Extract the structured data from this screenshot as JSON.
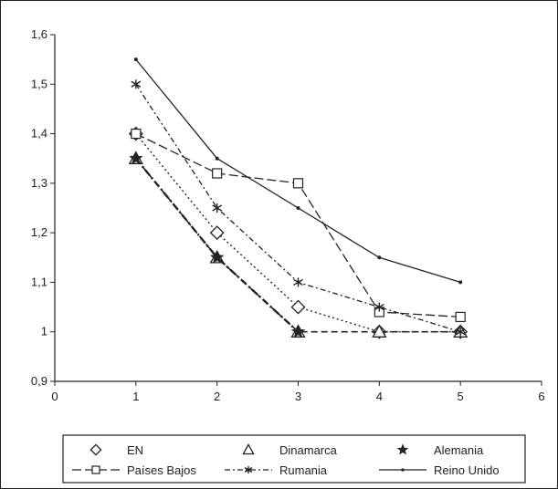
{
  "chart_data": {
    "type": "line",
    "x": [
      1,
      2,
      3,
      4,
      5
    ],
    "xlim": [
      0,
      6
    ],
    "ylim": [
      0.9,
      1.6
    ],
    "xticks": [
      0,
      1,
      2,
      3,
      4,
      5,
      6
    ],
    "yticks": [
      0.9,
      1,
      1.1,
      1.2,
      1.3,
      1.4,
      1.5,
      1.6
    ],
    "xtick_labels": [
      "0",
      "1",
      "2",
      "3",
      "4",
      "5",
      "6"
    ],
    "ytick_labels": [
      "0,9",
      "1",
      "1,1",
      "1,2",
      "1,3",
      "1,4",
      "1,5",
      "1,6"
    ],
    "grid": false,
    "legend_position": "bottom",
    "series": [
      {
        "name": "EN",
        "marker": "diamond",
        "line": "dotted",
        "x": [
          1,
          2,
          3,
          4,
          5
        ],
        "values": [
          1.4,
          1.2,
          1.05,
          1.0,
          1.0
        ]
      },
      {
        "name": "Dinamarca",
        "marker": "triangle",
        "line": "dashed",
        "x": [
          1,
          2,
          3,
          4,
          5
        ],
        "values": [
          1.35,
          1.15,
          1.0,
          1.0,
          1.0
        ]
      },
      {
        "name": "Alemania",
        "marker": "star",
        "line": "dash-dot-bold",
        "x": [
          1,
          2,
          3
        ],
        "values": [
          1.35,
          1.15,
          1.0
        ]
      },
      {
        "name": "Países Bajos",
        "marker": "square",
        "line": "long-dash",
        "x": [
          1,
          2,
          3,
          4,
          5
        ],
        "values": [
          1.4,
          1.32,
          1.3,
          1.04,
          1.03
        ]
      },
      {
        "name": "Rumania",
        "marker": "asterisk",
        "line": "dash-dot",
        "x": [
          1,
          2,
          3,
          4,
          5
        ],
        "values": [
          1.5,
          1.25,
          1.1,
          1.05,
          1.0
        ]
      },
      {
        "name": "Reino Unido",
        "marker": "small-dot",
        "line": "solid",
        "x": [
          1,
          2,
          3,
          4,
          5
        ],
        "values": [
          1.55,
          1.35,
          1.25,
          1.15,
          1.1
        ]
      }
    ]
  }
}
